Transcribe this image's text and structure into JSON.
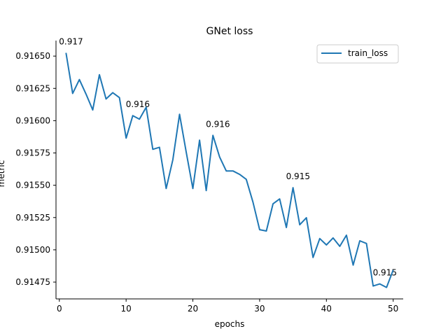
{
  "chart_data": {
    "type": "line",
    "title": "GNet loss",
    "xlabel": "epochs",
    "ylabel": "metric",
    "xlim": [
      -0.5,
      51.5
    ],
    "ylim": [
      0.91462,
      0.91662
    ],
    "xticks": [
      0,
      10,
      20,
      30,
      40,
      50
    ],
    "yticks": [
      0.91475,
      0.915,
      0.91525,
      0.9155,
      0.91575,
      0.916,
      0.91625,
      0.9165
    ],
    "ytick_labels": [
      "0.91475",
      "0.91500",
      "0.91525",
      "0.91550",
      "0.91575",
      "0.91600",
      "0.91625",
      "0.91650"
    ],
    "legend": {
      "position": "top-right",
      "entries": [
        "train_loss"
      ]
    },
    "grid": false,
    "colors": {
      "train_loss": "#1f77b4"
    },
    "series": [
      {
        "name": "train_loss",
        "x": [
          1,
          2,
          3,
          4,
          5,
          6,
          7,
          8,
          9,
          10,
          11,
          12,
          13,
          14,
          15,
          16,
          17,
          18,
          19,
          20,
          21,
          22,
          23,
          24,
          25,
          26,
          27,
          28,
          29,
          30,
          31,
          32,
          33,
          34,
          35,
          36,
          37,
          38,
          39,
          40,
          41,
          42,
          43,
          44,
          45,
          46,
          47,
          48,
          49,
          50
        ],
        "values": [
          0.916525,
          0.916211,
          0.916318,
          0.916206,
          0.916083,
          0.916356,
          0.916168,
          0.916217,
          0.916179,
          0.915865,
          0.916039,
          0.916012,
          0.916104,
          0.915778,
          0.915794,
          0.915475,
          0.915697,
          0.916049,
          0.915757,
          0.915475,
          0.915849,
          0.915459,
          0.915886,
          0.915719,
          0.915611,
          0.915611,
          0.915584,
          0.915546,
          0.915369,
          0.915156,
          0.915146,
          0.915356,
          0.915394,
          0.915173,
          0.915481,
          0.915194,
          0.915248,
          0.914941,
          0.915087,
          0.915038,
          0.915092,
          0.915027,
          0.915113,
          0.914882,
          0.91507,
          0.915049,
          0.91472,
          0.914736,
          0.914709,
          0.914844
        ]
      }
    ],
    "annotations": [
      {
        "x": 1,
        "y": 0.916525,
        "text": "0.917"
      },
      {
        "x": 11,
        "y": 0.916039,
        "text": "0.916"
      },
      {
        "x": 23,
        "y": 0.915886,
        "text": "0.916"
      },
      {
        "x": 35,
        "y": 0.915481,
        "text": "0.915"
      },
      {
        "x": 48,
        "y": 0.914736,
        "text": "0.915"
      }
    ]
  }
}
